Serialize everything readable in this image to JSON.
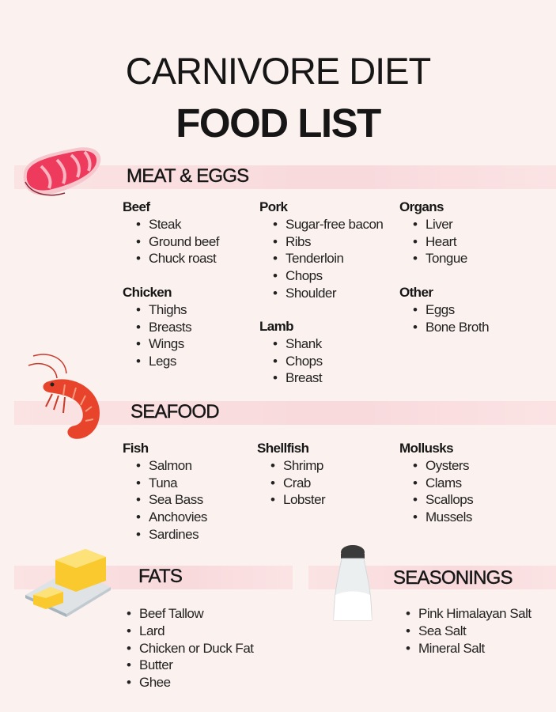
{
  "title": {
    "line1": "CARNIVORE DIET",
    "line2": "FOOD LIST"
  },
  "colors": {
    "background": "#fbf1ee",
    "band": "#f8d9dc",
    "meat": "#ee3a5c",
    "shrimp": "#e8442c",
    "butter": "#f9c92e"
  },
  "sections": {
    "meat": {
      "heading": "MEAT & EGGS",
      "icon": "steak-icon",
      "groups": [
        {
          "name": "Beef",
          "items": [
            "Steak",
            "Ground beef",
            "Chuck roast"
          ]
        },
        {
          "name": "Chicken",
          "items": [
            "Thighs",
            "Breasts",
            "Wings",
            "Legs"
          ]
        },
        {
          "name": "Pork",
          "items": [
            "Sugar-free bacon",
            "Ribs",
            "Tenderloin",
            "Chops",
            "Shoulder"
          ]
        },
        {
          "name": "Lamb",
          "items": [
            "Shank",
            "Chops",
            "Breast"
          ]
        },
        {
          "name": "Organs",
          "items": [
            "Liver",
            "Heart",
            "Tongue"
          ]
        },
        {
          "name": "Other",
          "items": [
            "Eggs",
            "Bone Broth"
          ]
        }
      ]
    },
    "seafood": {
      "heading": "SEAFOOD",
      "icon": "shrimp-icon",
      "groups": [
        {
          "name": "Fish",
          "items": [
            "Salmon",
            "Tuna",
            "Sea Bass",
            "Anchovies",
            "Sardines"
          ]
        },
        {
          "name": "Shellfish",
          "items": [
            "Shrimp",
            "Crab",
            "Lobster"
          ]
        },
        {
          "name": "Mollusks",
          "items": [
            "Oysters",
            "Clams",
            "Scallops",
            "Mussels"
          ]
        }
      ]
    },
    "fats": {
      "heading": "FATS",
      "icon": "butter-icon",
      "groups": [
        {
          "name": "",
          "items": [
            "Beef Tallow",
            "Lard",
            "Chicken or Duck Fat",
            "Butter",
            "Ghee"
          ]
        }
      ]
    },
    "seasonings": {
      "heading": "SEASONINGS",
      "icon": "salt-shaker-icon",
      "groups": [
        {
          "name": "",
          "items": [
            "Pink Himalayan Salt",
            "Sea Salt",
            "Mineral Salt"
          ]
        }
      ]
    }
  }
}
